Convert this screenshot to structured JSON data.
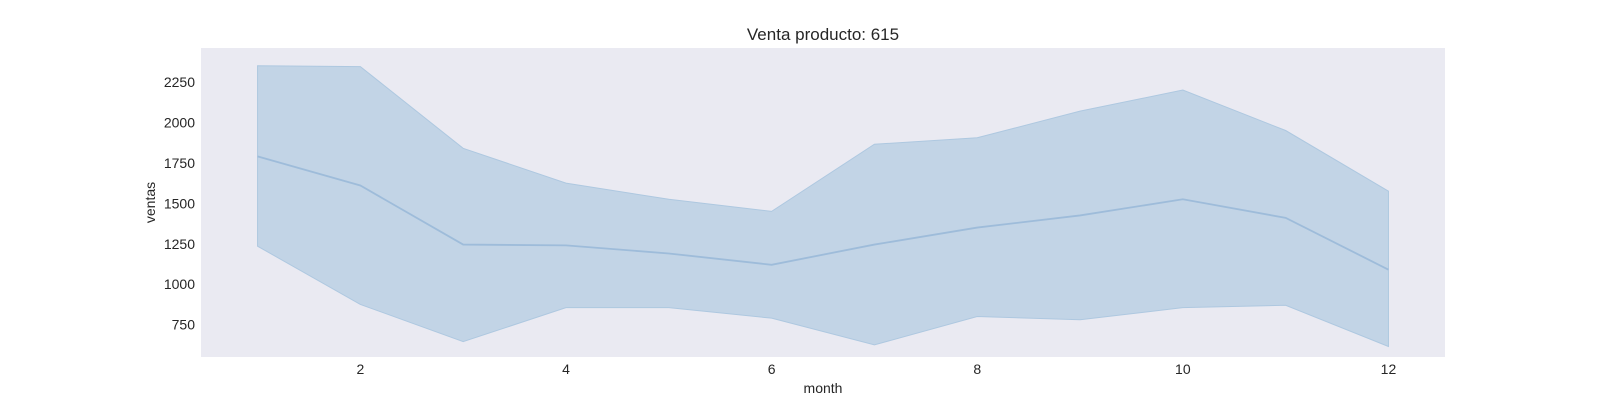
{
  "chart_data": {
    "type": "line",
    "title": "Venta producto: 615",
    "xlabel": "month",
    "ylabel": "ventas",
    "x": [
      1,
      2,
      3,
      4,
      5,
      6,
      7,
      8,
      9,
      10,
      11,
      12
    ],
    "x_ticks": [
      2,
      4,
      6,
      8,
      10,
      12
    ],
    "y_ticks": [
      750,
      1000,
      1250,
      1500,
      1750,
      2000,
      2250
    ],
    "xlim": [
      0.45,
      12.55
    ],
    "ylim": [
      550,
      2460
    ],
    "grid": false,
    "series": [
      {
        "values": [
          1790,
          1610,
          1245,
          1240,
          1190,
          1120,
          1245,
          1350,
          1425,
          1525,
          1410,
          1090
        ],
        "band_lower": [
          1235,
          875,
          645,
          855,
          855,
          790,
          625,
          800,
          780,
          855,
          870,
          615
        ],
        "band_upper": [
          2350,
          2345,
          1840,
          1625,
          1525,
          1450,
          1865,
          1905,
          2070,
          2200,
          1950,
          1575
        ]
      }
    ],
    "colors": {
      "plot_background": "#eaeaf2",
      "line": "#9ebcda",
      "band_fill": "#c2d4e6",
      "band_edge": "#aec8e0"
    }
  }
}
